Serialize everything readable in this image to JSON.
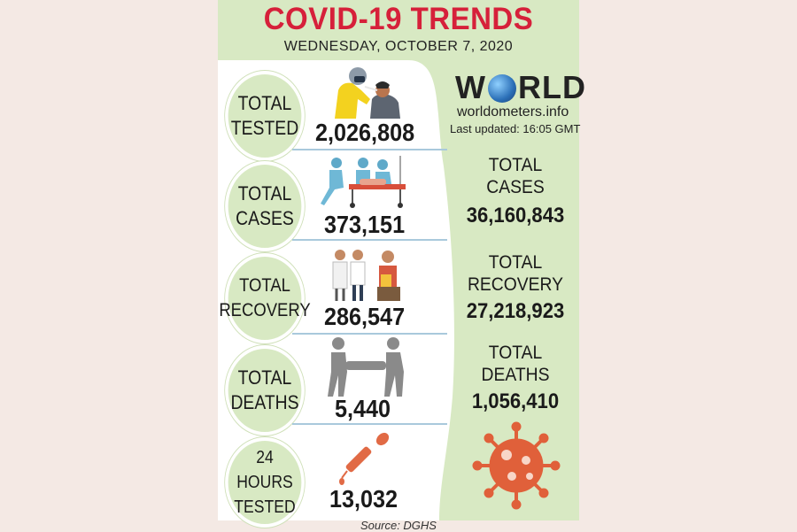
{
  "header": {
    "title": "COVID-19 TRENDS",
    "date": "WEDNESDAY, OCTOBER 7, 2020"
  },
  "bangladesh": [
    {
      "label": "TOTAL\nTESTED",
      "value": "2,026,808",
      "icon": "swab-test-icon"
    },
    {
      "label": "TOTAL\nCASES",
      "value": "373,151",
      "icon": "patient-stretcher-icon"
    },
    {
      "label": "TOTAL\nRECOVERY",
      "value": "286,547",
      "icon": "recovery-family-icon"
    },
    {
      "label": "TOTAL\nDEATHS",
      "value": "5,440",
      "icon": "body-carry-icon"
    },
    {
      "label": "24 HOURS\nTESTED",
      "value": "13,032",
      "icon": "dropper-icon"
    }
  ],
  "world": {
    "logo_left": "W",
    "logo_right": "RLD",
    "site": "worldometers.info",
    "updated": "Last updated: 16:05 GMT",
    "stats": [
      {
        "label": "TOTAL\nCASES",
        "value": "36,160,843"
      },
      {
        "label": "TOTAL\nRECOVERY",
        "value": "27,218,923"
      },
      {
        "label": "TOTAL\nDEATHS",
        "value": "1,056,410"
      }
    ]
  },
  "source": "Source: DGHS",
  "colors": {
    "title": "#d6203a",
    "panel": "#d8e9c3",
    "virus": "#e0603a",
    "divider": "#a9c9dc"
  }
}
